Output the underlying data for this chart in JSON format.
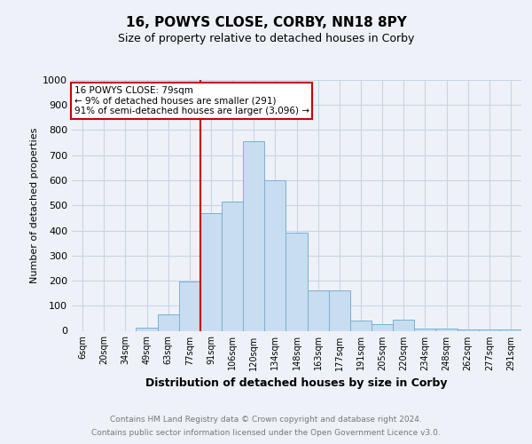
{
  "title": "16, POWYS CLOSE, CORBY, NN18 8PY",
  "subtitle": "Size of property relative to detached houses in Corby",
  "xlabel": "Distribution of detached houses by size in Corby",
  "ylabel": "Number of detached properties",
  "categories": [
    "6sqm",
    "20sqm",
    "34sqm",
    "49sqm",
    "63sqm",
    "77sqm",
    "91sqm",
    "106sqm",
    "120sqm",
    "134sqm",
    "148sqm",
    "163sqm",
    "177sqm",
    "191sqm",
    "205sqm",
    "220sqm",
    "234sqm",
    "248sqm",
    "262sqm",
    "277sqm",
    "291sqm"
  ],
  "values": [
    0,
    0,
    0,
    12,
    65,
    195,
    470,
    515,
    755,
    600,
    390,
    160,
    160,
    40,
    25,
    45,
    10,
    8,
    5,
    5,
    5
  ],
  "bar_color": "#c8ddf0",
  "bar_edge_color": "#7aafd4",
  "vline_color": "#cc0000",
  "annotation_text": "16 POWYS CLOSE: 79sqm\n← 9% of detached houses are smaller (291)\n91% of semi-detached houses are larger (3,096) →",
  "annotation_box_color": "#ffffff",
  "annotation_box_edge": "#cc0000",
  "ylim": [
    0,
    1000
  ],
  "yticks": [
    0,
    100,
    200,
    300,
    400,
    500,
    600,
    700,
    800,
    900,
    1000
  ],
  "footer_line1": "Contains HM Land Registry data © Crown copyright and database right 2024.",
  "footer_line2": "Contains public sector information licensed under the Open Government Licence v3.0.",
  "bg_color": "#eef2f8",
  "plot_bg_color": "#eef2f8",
  "grid_color": "#c8d4e4"
}
